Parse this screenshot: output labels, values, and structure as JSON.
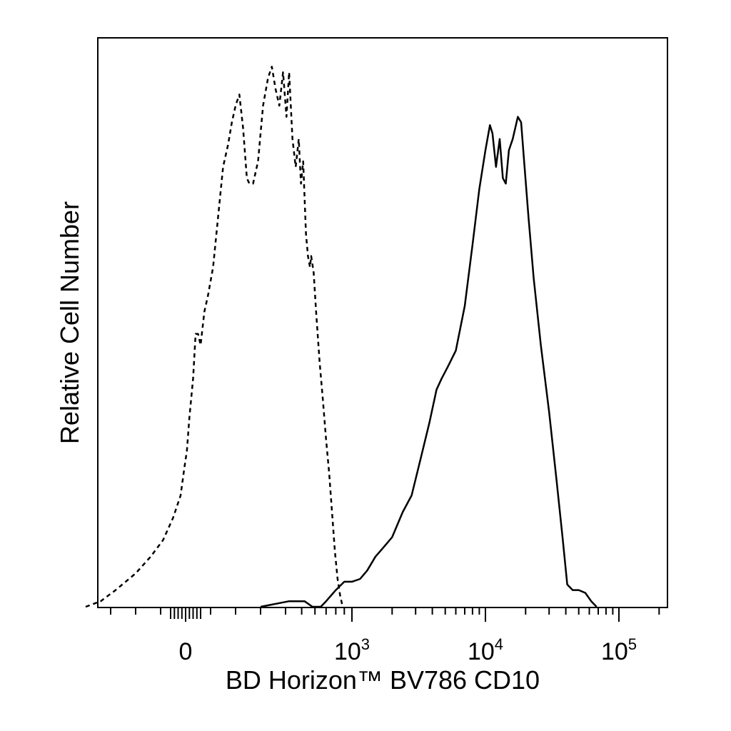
{
  "chart_data": {
    "type": "line",
    "title": "",
    "xlabel": "BD Horizon™ BV786 CD10",
    "ylabel": "Relative Cell Number",
    "x_scale": "biexponential",
    "xlim": [
      -400,
      200000
    ],
    "ylim": [
      0,
      100
    ],
    "grid": false,
    "legend": "none",
    "x_ticks": [
      {
        "value": 0,
        "base": "0",
        "exp": ""
      },
      {
        "value": 1000,
        "base": "10",
        "exp": "3"
      },
      {
        "value": 10000,
        "base": "10",
        "exp": "4"
      },
      {
        "value": 100000,
        "base": "10",
        "exp": "5"
      }
    ],
    "series": [
      {
        "style": "dashed",
        "color": "#000000",
        "points": [
          [
            -400,
            0
          ],
          [
            -340,
            1
          ],
          [
            -280,
            3
          ],
          [
            -200,
            6
          ],
          [
            -140,
            9
          ],
          [
            -90,
            12
          ],
          [
            -50,
            16
          ],
          [
            -20,
            20
          ],
          [
            -5,
            25
          ],
          [
            5,
            28
          ],
          [
            15,
            34
          ],
          [
            30,
            41
          ],
          [
            40,
            49
          ],
          [
            50,
            49
          ],
          [
            60,
            47
          ],
          [
            75,
            53
          ],
          [
            90,
            56
          ],
          [
            110,
            61
          ],
          [
            130,
            70
          ],
          [
            150,
            79
          ],
          [
            170,
            83
          ],
          [
            185,
            87
          ],
          [
            200,
            90
          ],
          [
            215,
            92
          ],
          [
            230,
            86
          ],
          [
            245,
            77
          ],
          [
            255,
            76
          ],
          [
            270,
            76
          ],
          [
            290,
            80
          ],
          [
            310,
            90
          ],
          [
            330,
            95
          ],
          [
            345,
            97
          ],
          [
            360,
            93
          ],
          [
            375,
            90
          ],
          [
            390,
            96
          ],
          [
            405,
            88
          ],
          [
            420,
            96
          ],
          [
            440,
            84
          ],
          [
            460,
            79
          ],
          [
            480,
            84
          ],
          [
            495,
            76
          ],
          [
            510,
            80
          ],
          [
            530,
            67
          ],
          [
            545,
            63
          ],
          [
            560,
            61
          ],
          [
            570,
            63
          ],
          [
            590,
            60
          ],
          [
            610,
            53
          ],
          [
            640,
            44
          ],
          [
            670,
            37
          ],
          [
            700,
            30
          ],
          [
            730,
            24
          ],
          [
            760,
            17
          ],
          [
            790,
            10
          ],
          [
            820,
            5
          ],
          [
            850,
            2
          ],
          [
            880,
            0
          ]
        ]
      },
      {
        "style": "solid",
        "color": "#000000",
        "points": [
          [
            300,
            0
          ],
          [
            420,
            1
          ],
          [
            520,
            1
          ],
          [
            580,
            0
          ],
          [
            650,
            0
          ],
          [
            700,
            1
          ],
          [
            800,
            3
          ],
          [
            900,
            4.5
          ],
          [
            1000,
            4.5
          ],
          [
            1150,
            5
          ],
          [
            1300,
            6.5
          ],
          [
            1500,
            9
          ],
          [
            1700,
            10.5
          ],
          [
            2000,
            12.5
          ],
          [
            2400,
            17
          ],
          [
            2800,
            20
          ],
          [
            3300,
            27
          ],
          [
            3800,
            33
          ],
          [
            4300,
            39
          ],
          [
            4700,
            41
          ],
          [
            5200,
            43
          ],
          [
            6000,
            46
          ],
          [
            7000,
            54
          ],
          [
            8000,
            65
          ],
          [
            9000,
            75
          ],
          [
            10000,
            82
          ],
          [
            10800,
            86.5
          ],
          [
            11300,
            85
          ],
          [
            12000,
            79
          ],
          [
            12800,
            84
          ],
          [
            13500,
            77
          ],
          [
            14200,
            76
          ],
          [
            15000,
            82
          ],
          [
            16000,
            84
          ],
          [
            17500,
            88
          ],
          [
            18500,
            87
          ],
          [
            19500,
            80
          ],
          [
            21000,
            70
          ],
          [
            23000,
            59
          ],
          [
            26000,
            47
          ],
          [
            30000,
            35
          ],
          [
            34000,
            23
          ],
          [
            38000,
            12
          ],
          [
            41000,
            4
          ],
          [
            45000,
            3
          ],
          [
            50000,
            3
          ],
          [
            56000,
            2.5
          ],
          [
            62000,
            1
          ],
          [
            68000,
            0
          ]
        ]
      }
    ]
  }
}
